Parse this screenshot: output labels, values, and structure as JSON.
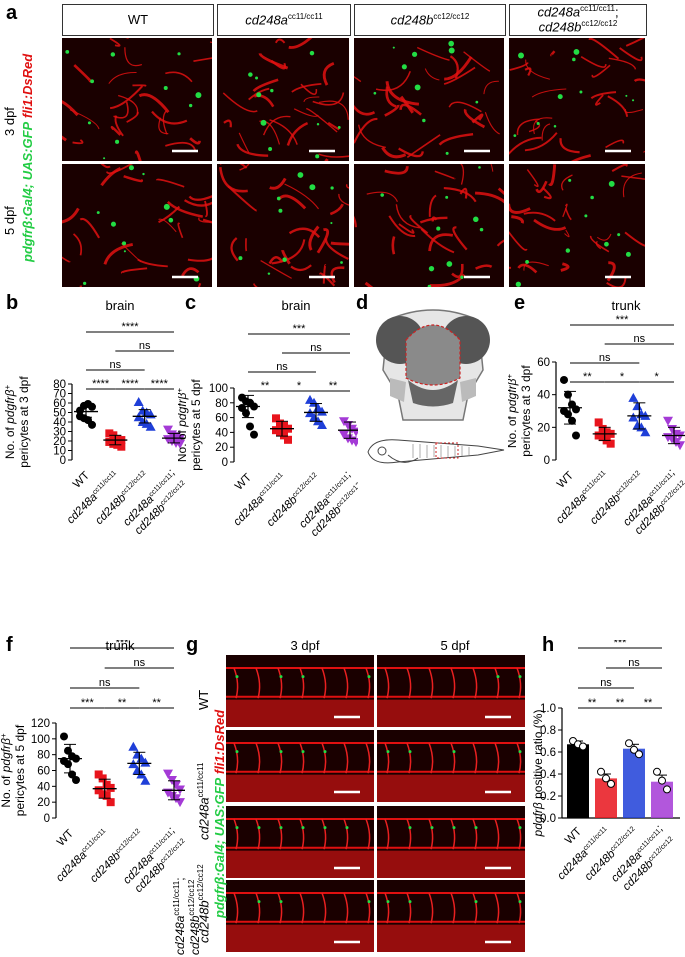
{
  "panel_letters": [
    "a",
    "b",
    "c",
    "d",
    "e",
    "f",
    "g",
    "h"
  ],
  "genotypes": {
    "wt": "WT",
    "a": "cd248a",
    "a_sup": "cc11/cc11",
    "b": "cd248b",
    "b_sup": "cc12/cc12",
    "ab_line1": "cd248a",
    "ab_line1_sup": "cc11/cc11",
    "ab_line1_sep": ";",
    "ab_line2": "cd248b",
    "ab_line2_sup": "cc12/cc12"
  },
  "panel_a": {
    "row_labels": [
      "3 dpf",
      "5 dpf"
    ],
    "side_label_green": "pdgfrβ:Gal4; UAS:GFP",
    "side_label_red": "fli1:DsRed",
    "colors": {
      "vessel": "#e01010",
      "pericyte": "#22dd44",
      "background": "#1a0000"
    }
  },
  "panel_b": {
    "title": "brain",
    "ylabel_line1": "No. of pdgfrβ",
    "ylabel_sup": "+",
    "ylabel_line2": "pericytes at 3 dpf",
    "sig": [
      "****",
      "ns",
      "ns",
      "****",
      "****",
      "****"
    ]
  },
  "panel_c": {
    "title": "brain",
    "ylabel_line1": "No. of pdgfrβ",
    "ylabel_sup": "+",
    "ylabel_line2": "pericytes at 5 dpf",
    "sig": [
      "***",
      "ns",
      "ns",
      "**",
      "*",
      "**"
    ]
  },
  "panel_e": {
    "title": "trunk",
    "ylabel_line1": "No. of pdgfrβ",
    "ylabel_sup": "+",
    "ylabel_line2": "pericytes at 3 dpf",
    "sig": [
      "***",
      "ns",
      "ns",
      "**",
      "*",
      "*"
    ]
  },
  "panel_f": {
    "title": "trunk",
    "ylabel_line1": "No. of pdgfrβ",
    "ylabel_sup": "+",
    "ylabel_line2": "pericytes at 5 dpf",
    "sig": [
      "***",
      "ns",
      "ns",
      "***",
      "**",
      "**"
    ]
  },
  "panel_g": {
    "col_labels": [
      "3 dpf",
      "5 dpf"
    ],
    "side_label_green": "pdgfrβ:Gal4; UAS:GFP",
    "side_label_red": "fli1:DsRed"
  },
  "panel_h": {
    "ylabel_italic": "pdgfrβ",
    "ylabel_rest": " positive ratio (%)",
    "sig": [
      "***",
      "ns",
      "ns",
      "**",
      "**",
      "**"
    ]
  },
  "series_colors": [
    "#000000",
    "#e8141c",
    "#1f3fd8",
    "#a43ad6"
  ],
  "chart_data": [
    {
      "id": "b",
      "type": "scatter",
      "title": "brain",
      "ylim": [
        0,
        80
      ],
      "yticks": [
        0,
        10,
        20,
        30,
        40,
        50,
        60,
        70,
        80
      ],
      "categories": [
        "WT",
        "cd248a cc11/cc11",
        "cd248b cc12/cc12",
        "cd248a cc11/cc11; cd248b cc12/cc12"
      ],
      "series": [
        {
          "values": [
            52,
            57,
            59,
            56,
            46,
            44,
            42,
            37
          ],
          "mean": 51,
          "sd": 6
        },
        {
          "values": [
            28,
            26,
            22,
            21,
            19,
            17,
            16,
            14
          ],
          "mean": 21,
          "sd": 5
        },
        {
          "values": [
            61,
            52,
            50,
            48,
            45,
            40,
            38,
            35
          ],
          "mean": 46,
          "sd": 7
        },
        {
          "values": [
            32,
            27,
            25,
            23,
            22,
            20,
            18,
            17
          ],
          "mean": 23,
          "sd": 5
        }
      ]
    },
    {
      "id": "c",
      "type": "scatter",
      "title": "brain",
      "ylim": [
        0,
        100
      ],
      "yticks": [
        0,
        20,
        40,
        60,
        80,
        100
      ],
      "categories": [
        "WT",
        "cd248a cc11/cc11",
        "cd248b cc12/cc12",
        "cd248a cc11/cc11; cd248b cc12/cc12"
      ],
      "series": [
        {
          "values": [
            87,
            82,
            80,
            75,
            73,
            66,
            48,
            37
          ],
          "mean": 75,
          "sd": 15
        },
        {
          "values": [
            59,
            52,
            49,
            45,
            43,
            40,
            36,
            30
          ],
          "mean": 45,
          "sd": 10
        },
        {
          "values": [
            84,
            80,
            73,
            68,
            66,
            60,
            55,
            50
          ],
          "mean": 67,
          "sd": 12
        },
        {
          "values": [
            55,
            50,
            45,
            41,
            37,
            32,
            29,
            27
          ],
          "mean": 43,
          "sd": 11
        }
      ]
    },
    {
      "id": "e",
      "type": "scatter",
      "title": "trunk",
      "ylim": [
        0,
        60
      ],
      "yticks": [
        0,
        20,
        40,
        60
      ],
      "categories": [
        "WT",
        "cd248a cc11/cc11",
        "cd248b cc12/cc12",
        "cd248a cc11/cc11; cd248b cc12/cc12"
      ],
      "series": [
        {
          "values": [
            49,
            40,
            34,
            31,
            30,
            28,
            24,
            15
          ],
          "mean": 32,
          "sd": 10
        },
        {
          "values": [
            23,
            19,
            17,
            16,
            15,
            14,
            12,
            10
          ],
          "mean": 16,
          "sd": 4
        },
        {
          "values": [
            38,
            33,
            28,
            27,
            26,
            21,
            20,
            17
          ],
          "mean": 27,
          "sd": 8
        },
        {
          "values": [
            24,
            19,
            16,
            15,
            14,
            13,
            11,
            9
          ],
          "mean": 15,
          "sd": 5
        }
      ]
    },
    {
      "id": "f",
      "type": "scatter",
      "title": "trunk",
      "ylim": [
        0,
        120
      ],
      "yticks": [
        0,
        20,
        40,
        60,
        80,
        100,
        120
      ],
      "categories": [
        "WT",
        "cd248a cc11/cc11",
        "cd248b cc12/cc12",
        "cd248a cc11/cc11; cd248b cc12/cc12"
      ],
      "series": [
        {
          "values": [
            103,
            85,
            78,
            75,
            72,
            68,
            55,
            48
          ],
          "mean": 75,
          "sd": 18
        },
        {
          "values": [
            55,
            50,
            42,
            38,
            35,
            30,
            28,
            20
          ],
          "mean": 37,
          "sd": 12
        },
        {
          "values": [
            90,
            80,
            75,
            70,
            68,
            60,
            55,
            47
          ],
          "mean": 69,
          "sd": 14
        },
        {
          "values": [
            56,
            48,
            42,
            36,
            32,
            28,
            25,
            20
          ],
          "mean": 35,
          "sd": 12
        }
      ]
    },
    {
      "id": "h",
      "type": "bar",
      "ylim": [
        0,
        1.0
      ],
      "yticks": [
        0.0,
        0.2,
        0.4,
        0.6,
        0.8,
        1.0
      ],
      "categories": [
        "WT",
        "cd248a cc11/cc11",
        "cd248b cc12/cc12",
        "cd248a cc11/cc11; cd248b cc12/cc12"
      ],
      "series": [
        {
          "value": 0.67,
          "points": [
            0.7,
            0.67,
            0.65
          ],
          "sd": 0.03
        },
        {
          "value": 0.36,
          "points": [
            0.42,
            0.36,
            0.31
          ],
          "sd": 0.04
        },
        {
          "value": 0.63,
          "points": [
            0.68,
            0.62,
            0.58
          ],
          "sd": 0.04
        },
        {
          "value": 0.33,
          "points": [
            0.42,
            0.34,
            0.26
          ],
          "sd": 0.06
        }
      ]
    }
  ]
}
